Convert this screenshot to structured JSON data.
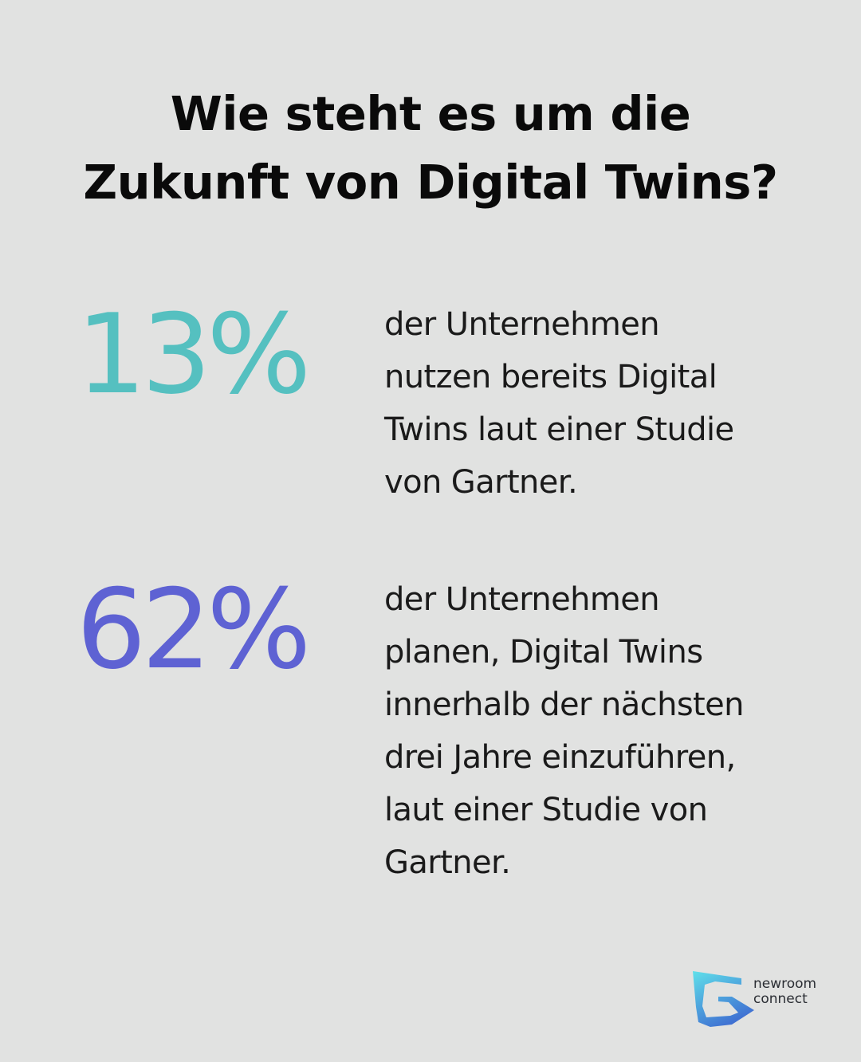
{
  "title": {
    "line1": "Wie steht es um die",
    "line2": "Zukunft von Digital Twins?"
  },
  "stats": [
    {
      "value": "13%",
      "color": "#55c0c0",
      "description": "der Unternehmen\nnutzen bereits Digital\nTwins laut einer Studie\nvon Gartner."
    },
    {
      "value": "62%",
      "color": "#5e62d3",
      "description": "der Unternehmen\nplanen, Digital Twins\ninnerhalb der nächsten\ndrei Jahre einzuführen,\nlaut einer Studie von\nGartner."
    }
  ],
  "logo": {
    "line1": "newroom",
    "line2": "connect",
    "icon": "newroom-connect-logo-icon",
    "colors": [
      "#5fe0ea",
      "#3f6fd2"
    ]
  }
}
